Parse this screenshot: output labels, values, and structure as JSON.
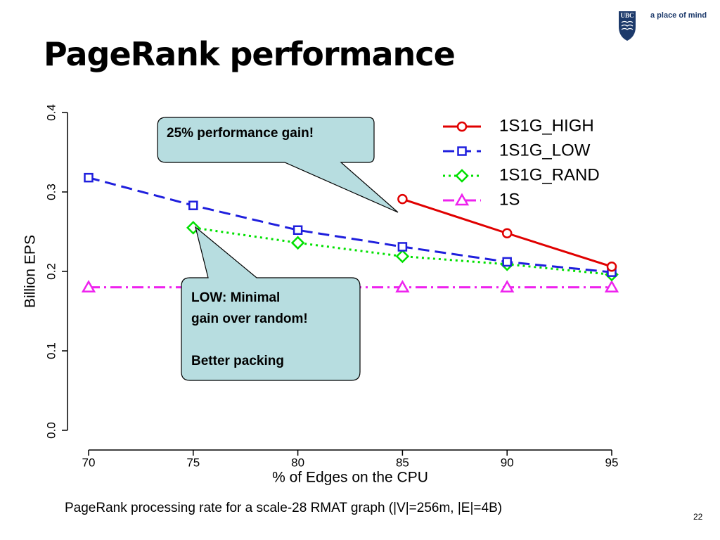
{
  "slide": {
    "title": "PageRank performance",
    "caption": "PageRank processing rate for a scale-28 RMAT graph (|V|=256m, |E|=4B)",
    "page_number": "22"
  },
  "branding": {
    "logo_text": "UBC",
    "tagline": "a place of mind",
    "logo_color": "#1d3a6b"
  },
  "callouts": [
    {
      "text": "25% performance gain!"
    },
    {
      "text": "LOW: Minimal\ngain over random!\n\nBetter packing"
    }
  ],
  "chart_data": {
    "type": "line",
    "xlabel": "% of Edges on the CPU",
    "ylabel": "Billion EPS",
    "x_ticks": [
      70,
      75,
      80,
      85,
      90,
      95
    ],
    "y_ticks": [
      "0.0",
      "0.1",
      "0.2",
      "0.3",
      "0.4"
    ],
    "xlim": [
      70,
      95
    ],
    "ylim": [
      0,
      0.4
    ],
    "grid": false,
    "legend_position": "top-right",
    "series": [
      {
        "name": "1S1G_HIGH",
        "color": "#e00000",
        "marker": "circle",
        "dash": "solid",
        "x": [
          85,
          90,
          95
        ],
        "y": [
          0.291,
          0.248,
          0.206
        ]
      },
      {
        "name": "1S1G_LOW",
        "color": "#1f1fdd",
        "marker": "square",
        "dash": "dashed",
        "x": [
          70,
          75,
          80,
          85,
          90,
          95
        ],
        "y": [
          0.318,
          0.283,
          0.252,
          0.231,
          0.212,
          0.199
        ]
      },
      {
        "name": "1S1G_RAND",
        "color": "#00e000",
        "marker": "diamond",
        "dash": "dotted",
        "x": [
          75,
          80,
          85,
          90,
          95
        ],
        "y": [
          0.255,
          0.236,
          0.219,
          0.209,
          0.196
        ]
      },
      {
        "name": "1S",
        "color": "#ee22ee",
        "marker": "triangle",
        "dash": "dashdot",
        "x": [
          70,
          75,
          80,
          85,
          90,
          95
        ],
        "y": [
          0.18,
          0.18,
          0.18,
          0.18,
          0.18,
          0.18
        ]
      }
    ]
  }
}
